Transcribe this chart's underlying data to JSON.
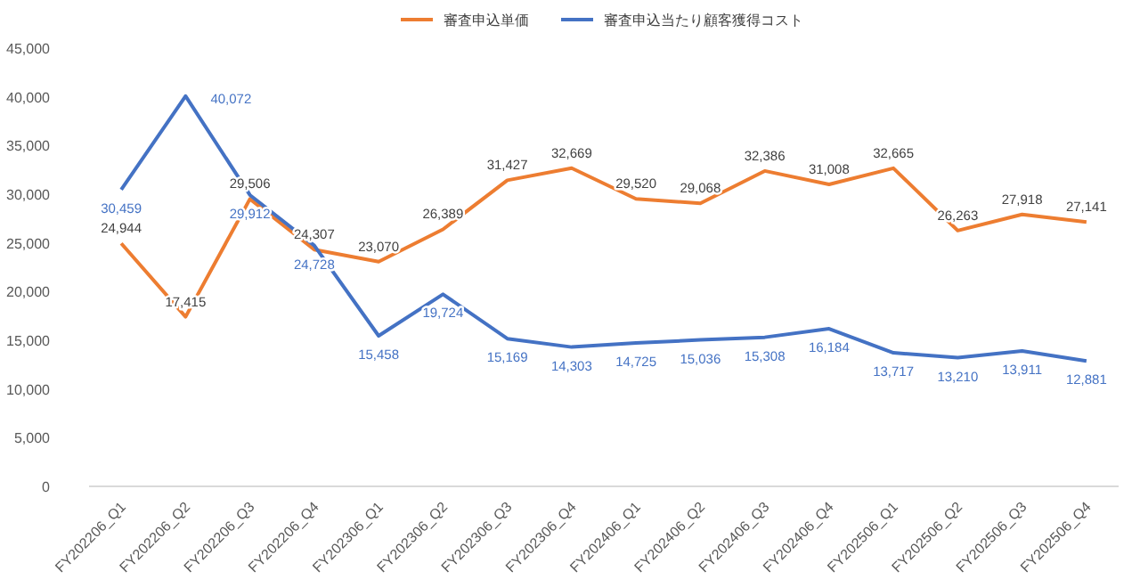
{
  "chart_data": {
    "type": "line",
    "categories": [
      "FY202206_Q1",
      "FY202206_Q2",
      "FY202206_Q3",
      "FY202206_Q4",
      "FY202306_Q1",
      "FY202306_Q2",
      "FY202306_Q3",
      "FY202306_Q4",
      "FY202406_Q1",
      "FY202406_Q2",
      "FY202406_Q3",
      "FY202406_Q4",
      "FY202506_Q1",
      "FY202506_Q2",
      "FY202506_Q3",
      "FY202506_Q4"
    ],
    "series": [
      {
        "name": "審査申込単価",
        "color": "#ed7d31",
        "values": [
          24944,
          17415,
          29506,
          24307,
          23070,
          26389,
          31427,
          32669,
          29520,
          29068,
          32386,
          31008,
          32665,
          26263,
          27918,
          27141
        ],
        "value_labels": [
          "24,944",
          "17,415",
          "29,506",
          "24,307",
          "23,070",
          "26,389",
          "31,427",
          "32,669",
          "29,520",
          "29,068",
          "32,386",
          "31,008",
          "32,665",
          "26,263",
          "27,918",
          "27,141"
        ]
      },
      {
        "name": "審査申込当たり顧客獲得コスト",
        "color": "#4472c4",
        "values": [
          30459,
          40072,
          29912,
          24728,
          15458,
          19724,
          15169,
          14303,
          14725,
          15036,
          15308,
          16184,
          13717,
          13210,
          13911,
          12881
        ],
        "value_labels": [
          "30,459",
          "40,072",
          "29,912",
          "24,728",
          "15,458",
          "19,724",
          "15,169",
          "14,303",
          "14,725",
          "15,036",
          "15,308",
          "16,184",
          "13,717",
          "13,210",
          "13,911",
          "12,881"
        ]
      }
    ],
    "ylim": [
      0,
      45000
    ],
    "yticks": [
      {
        "value": 0,
        "label": "0"
      },
      {
        "value": 5000,
        "label": "5,000"
      },
      {
        "value": 10000,
        "label": "10,000"
      },
      {
        "value": 15000,
        "label": "15,000"
      },
      {
        "value": 20000,
        "label": "20,000"
      },
      {
        "value": 25000,
        "label": "25,000"
      },
      {
        "value": 30000,
        "label": "30,000"
      },
      {
        "value": 35000,
        "label": "35,000"
      },
      {
        "value": 40000,
        "label": "40,000"
      },
      {
        "value": 45000,
        "label": "45,000"
      }
    ],
    "grid": false,
    "legend": "top",
    "marker": "none"
  }
}
